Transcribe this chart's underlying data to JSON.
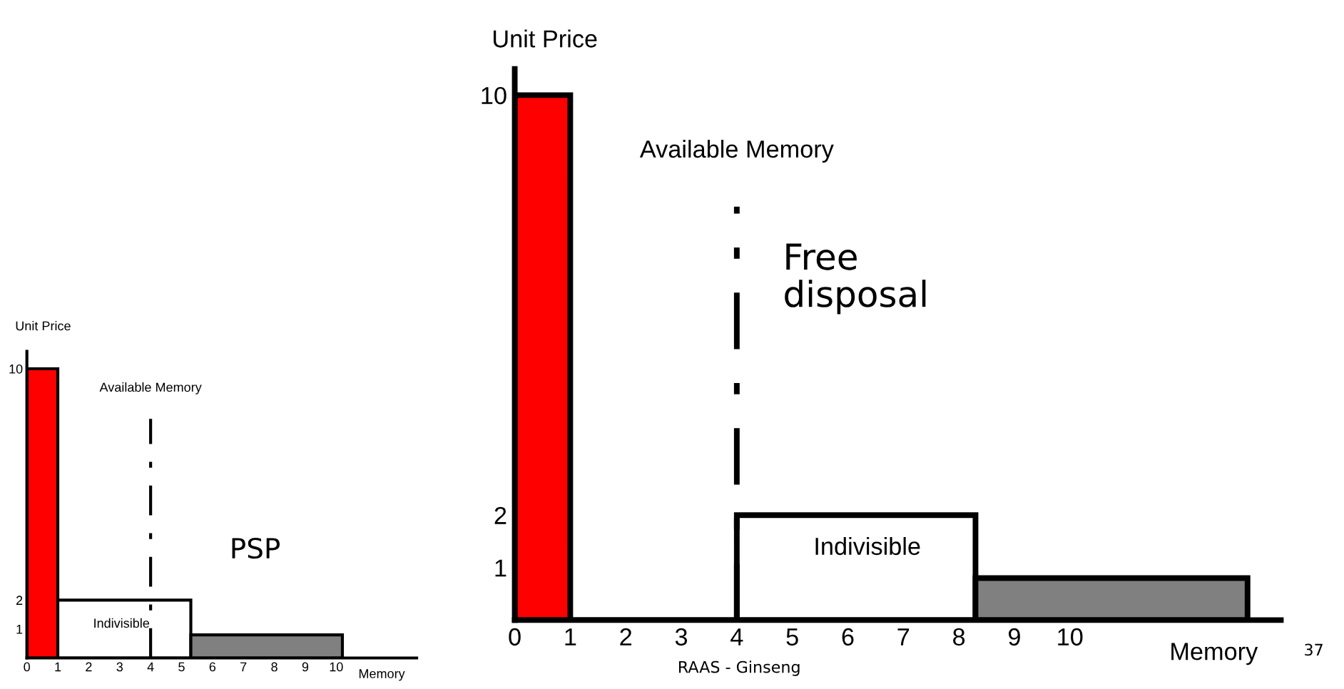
{
  "chart_data": [
    {
      "type": "histogram",
      "ylabel": "Unit Price",
      "xlabel": "Memory",
      "bins": [
        0,
        1,
        5.3,
        10.2
      ],
      "values": [
        10,
        2,
        0.8
      ],
      "colors": [
        "#ff0000",
        "#ffffff",
        "#808080"
      ],
      "xlim": [
        0,
        12.6
      ],
      "ylim": [
        0,
        10.6
      ],
      "xticks": [
        0,
        1,
        2,
        3,
        4,
        5,
        6,
        7,
        8,
        9,
        10
      ],
      "yticks": [
        1,
        2,
        10
      ],
      "ref_lines": [
        {
          "axis": "x",
          "value": 4,
          "label": "Available Memory",
          "color": "#000000",
          "line_style": "dashed"
        }
      ],
      "annotations": [
        "Indivisible",
        "PSP"
      ],
      "grid": false,
      "legend": false
    },
    {
      "type": "histogram",
      "ylabel": "Unit Price",
      "xlabel": "Memory",
      "bins": [
        0,
        1,
        4,
        8.3,
        13.2
      ],
      "values": [
        10,
        0,
        2,
        0.8
      ],
      "colors": [
        "#ff0000",
        "#ffffff",
        "#ffffff",
        "#808080"
      ],
      "xlim": [
        0,
        13.8
      ],
      "ylim": [
        0,
        10.5
      ],
      "xticks": [
        0,
        1,
        2,
        3,
        4,
        5,
        6,
        7,
        8,
        9,
        10
      ],
      "yticks": [
        1,
        2,
        10
      ],
      "ref_lines": [
        {
          "axis": "x",
          "value": 4,
          "label": "Available Memory",
          "color": "#000000",
          "line_style": "dashed"
        }
      ],
      "annotations": [
        "Indivisible",
        "Free\ndisposal",
        "RAAS - Ginseng",
        "37"
      ],
      "grid": false,
      "legend": false
    }
  ]
}
